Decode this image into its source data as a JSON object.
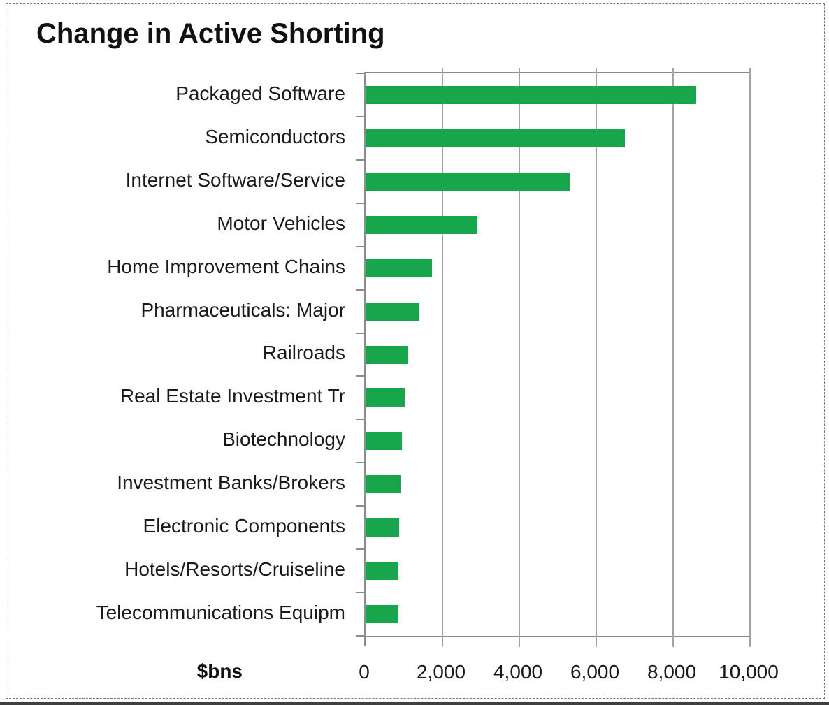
{
  "chart_data": {
    "type": "bar",
    "orientation": "horizontal",
    "title": "Change in Active Shorting",
    "xlabel": "$bns",
    "ylabel": "",
    "xlim": [
      0,
      10000
    ],
    "xticks": [
      0,
      2000,
      4000,
      6000,
      8000,
      10000
    ],
    "xtick_labels": [
      "0",
      "2,000",
      "4,000",
      "6,000",
      "8,000",
      "10,000"
    ],
    "grid": "vertical-gridlines-on",
    "legend": "none",
    "categories": [
      "Packaged Software",
      "Semiconductors",
      "Internet Software/Service",
      "Motor Vehicles",
      "Home Improvement Chains",
      "Pharmaceuticals: Major",
      "Railroads",
      "Real Estate Investment Tr",
      "Biotechnology",
      "Investment Banks/Brokers",
      "Electronic Components",
      "Hotels/Resorts/Cruiseline",
      "Telecommunications Equipm"
    ],
    "values": [
      8600,
      6750,
      5300,
      2900,
      1730,
      1400,
      1100,
      1020,
      950,
      900,
      870,
      860,
      850
    ]
  },
  "colors": {
    "bar": "#17a64c",
    "gridline": "#a3a3a3",
    "axis": "#8c8c8c",
    "text": "#1a1a1a"
  }
}
